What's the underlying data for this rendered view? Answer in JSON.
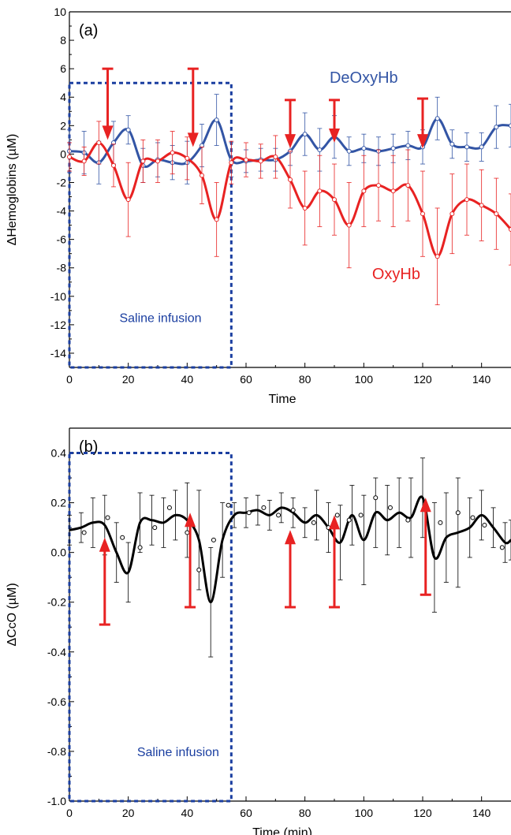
{
  "chart_data": [
    {
      "type": "line",
      "panel_label": "(a)",
      "xlabel": "Time",
      "ylabel": "ΔHemoglobins (µM)",
      "xlim": [
        0,
        150
      ],
      "ylim": [
        -15,
        10
      ],
      "xticks": [
        0,
        20,
        40,
        60,
        80,
        100,
        120,
        140
      ],
      "yticks": [
        -14,
        -12,
        -10,
        -8,
        -6,
        -4,
        -2,
        0,
        2,
        4,
        6,
        8,
        10
      ],
      "colors": {
        "deoxy": "#3355a5",
        "oxy": "#e82222",
        "arrow": "#e82222",
        "box": "#1a3ea0"
      },
      "series": [
        {
          "name": "DeOxyHb",
          "x": [
            0,
            5,
            10,
            15,
            20,
            25,
            30,
            35,
            40,
            45,
            50,
            55,
            60,
            65,
            70,
            75,
            80,
            85,
            90,
            95,
            100,
            105,
            110,
            115,
            120,
            125,
            130,
            135,
            140,
            145,
            150
          ],
          "values": [
            0.2,
            0.1,
            -0.6,
            0.8,
            1.7,
            -0.8,
            -0.4,
            -0.6,
            -0.6,
            0.6,
            2.4,
            -0.4,
            -0.5,
            -0.4,
            -0.4,
            0.2,
            1.4,
            0.3,
            1.2,
            0.2,
            0.4,
            0.2,
            0.4,
            0.6,
            0.5,
            2.5,
            0.7,
            0.5,
            0.5,
            1.9,
            2.0
          ],
          "errors": [
            1.5,
            1.5,
            1.5,
            1.5,
            1.0,
            1.2,
            1.2,
            1.2,
            1.5,
            1.5,
            1.8,
            1.2,
            0.8,
            0.8,
            0.8,
            1.0,
            1.5,
            1.5,
            1.5,
            1.0,
            1.0,
            1.0,
            1.0,
            1.0,
            1.2,
            1.5,
            1.0,
            1.0,
            1.0,
            1.5,
            1.5
          ]
        },
        {
          "name": "OxyHb",
          "x": [
            0,
            5,
            10,
            15,
            20,
            25,
            30,
            35,
            40,
            45,
            50,
            55,
            60,
            65,
            70,
            75,
            80,
            85,
            90,
            95,
            100,
            105,
            110,
            115,
            120,
            125,
            130,
            135,
            140,
            145,
            150
          ],
          "values": [
            -0.2,
            -0.5,
            0.8,
            -0.8,
            -3.2,
            -0.5,
            -0.5,
            0.1,
            -0.3,
            -1.5,
            -4.6,
            -0.6,
            -0.4,
            -0.5,
            -0.2,
            -1.8,
            -3.8,
            -2.6,
            -3.2,
            -5.0,
            -2.6,
            -2.2,
            -2.6,
            -2.2,
            -4.2,
            -7.2,
            -4.2,
            -3.2,
            -3.6,
            -4.2,
            -5.3
          ],
          "errors": [
            1.0,
            1.0,
            1.5,
            1.5,
            2.6,
            1.5,
            1.5,
            1.5,
            1.5,
            2.0,
            2.6,
            1.5,
            1.2,
            1.2,
            1.5,
            2.0,
            2.6,
            2.5,
            2.5,
            3.0,
            2.5,
            2.5,
            2.5,
            2.5,
            3.0,
            3.4,
            2.8,
            2.5,
            2.5,
            2.5,
            2.5
          ]
        }
      ],
      "arrows": [
        {
          "x": 13,
          "from": 6,
          "to": 1
        },
        {
          "x": 42,
          "from": 6,
          "to": 0.5
        },
        {
          "x": 75,
          "from": 3.8,
          "to": 0.4
        },
        {
          "x": 90,
          "from": 3.8,
          "to": 0.8
        },
        {
          "x": 120,
          "from": 3.9,
          "to": 0.4
        }
      ],
      "box": {
        "x0": 0,
        "x1": 55,
        "y0": -15,
        "y1": 5
      },
      "annotations": {
        "box_label": "Saline infusion",
        "deoxy_label": "DeOxyHb",
        "oxy_label": "OxyHb"
      },
      "annotation_positions": {
        "box_label": [
          17,
          -11.8
        ],
        "deoxy_label": [
          100,
          5.0
        ],
        "oxy_label": [
          111,
          -8.8
        ]
      }
    },
    {
      "type": "line",
      "panel_label": "(b)",
      "xlabel": "Time (min)",
      "ylabel": "ΔCcO (µM)",
      "xlim": [
        0,
        150
      ],
      "ylim": [
        -1.0,
        0.5
      ],
      "xticks": [
        0,
        20,
        40,
        60,
        80,
        100,
        120,
        140
      ],
      "yticks": [
        -1.0,
        -0.8,
        -0.6,
        -0.4,
        -0.2,
        0.0,
        0.2,
        0.4
      ],
      "colors": {
        "ccO": "#000000",
        "arrow": "#e82222",
        "box": "#1a3ea0"
      },
      "series": [
        {
          "name": "CcO",
          "x": [
            0,
            4,
            8,
            12,
            16,
            20,
            24,
            28,
            32,
            36,
            40,
            44,
            48,
            52,
            56,
            60,
            64,
            68,
            72,
            76,
            80,
            84,
            88,
            92,
            96,
            100,
            104,
            108,
            112,
            116,
            120,
            124,
            128,
            132,
            136,
            140,
            144,
            148,
            150
          ],
          "values": [
            0.09,
            0.1,
            0.12,
            0.11,
            0.0,
            -0.08,
            0.12,
            0.13,
            0.12,
            0.15,
            0.13,
            0.05,
            -0.2,
            0.05,
            0.15,
            0.16,
            0.17,
            0.15,
            0.18,
            0.16,
            0.12,
            0.15,
            0.1,
            0.04,
            0.15,
            0.05,
            0.16,
            0.13,
            0.16,
            0.14,
            0.22,
            -0.02,
            0.06,
            0.08,
            0.1,
            0.15,
            0.1,
            0.04,
            0.05
          ],
          "errors": [
            0.06,
            0.06,
            0.1,
            0.12,
            0.12,
            0.12,
            0.12,
            0.1,
            0.1,
            0.1,
            0.15,
            0.2,
            0.22,
            0.15,
            0.05,
            0.06,
            0.06,
            0.06,
            0.06,
            0.06,
            0.06,
            0.1,
            0.1,
            0.15,
            0.12,
            0.18,
            0.14,
            0.14,
            0.14,
            0.16,
            0.16,
            0.22,
            0.18,
            0.22,
            0.12,
            0.1,
            0.08,
            0.08,
            0.08
          ],
          "points_x": [
            5,
            13,
            18,
            24,
            29,
            34,
            40,
            44,
            49,
            54,
            61,
            66,
            71,
            76,
            83,
            88,
            91,
            95,
            99,
            104,
            109,
            115,
            121,
            126,
            132,
            137,
            141,
            147
          ],
          "points_y": [
            0.08,
            0.14,
            0.06,
            0.02,
            0.1,
            0.18,
            0.08,
            -0.07,
            0.05,
            0.19,
            0.16,
            0.18,
            0.15,
            0.17,
            0.12,
            0.1,
            0.15,
            0.13,
            0.15,
            0.22,
            0.18,
            0.13,
            0.17,
            0.12,
            0.16,
            0.14,
            0.11,
            0.02
          ]
        }
      ],
      "arrows": [
        {
          "x": 12,
          "from": -0.29,
          "to": 0.06
        },
        {
          "x": 41,
          "from": -0.22,
          "to": 0.16
        },
        {
          "x": 75,
          "from": -0.22,
          "to": 0.09
        },
        {
          "x": 90,
          "from": -0.22,
          "to": 0.15
        },
        {
          "x": 121,
          "from": -0.17,
          "to": 0.22
        }
      ],
      "box": {
        "x0": 0,
        "x1": 55,
        "y0": -1.0,
        "y1": 0.4
      },
      "annotations": {
        "box_label": "Saline infusion"
      },
      "annotation_positions": {
        "box_label": [
          23,
          -0.82
        ]
      }
    }
  ]
}
